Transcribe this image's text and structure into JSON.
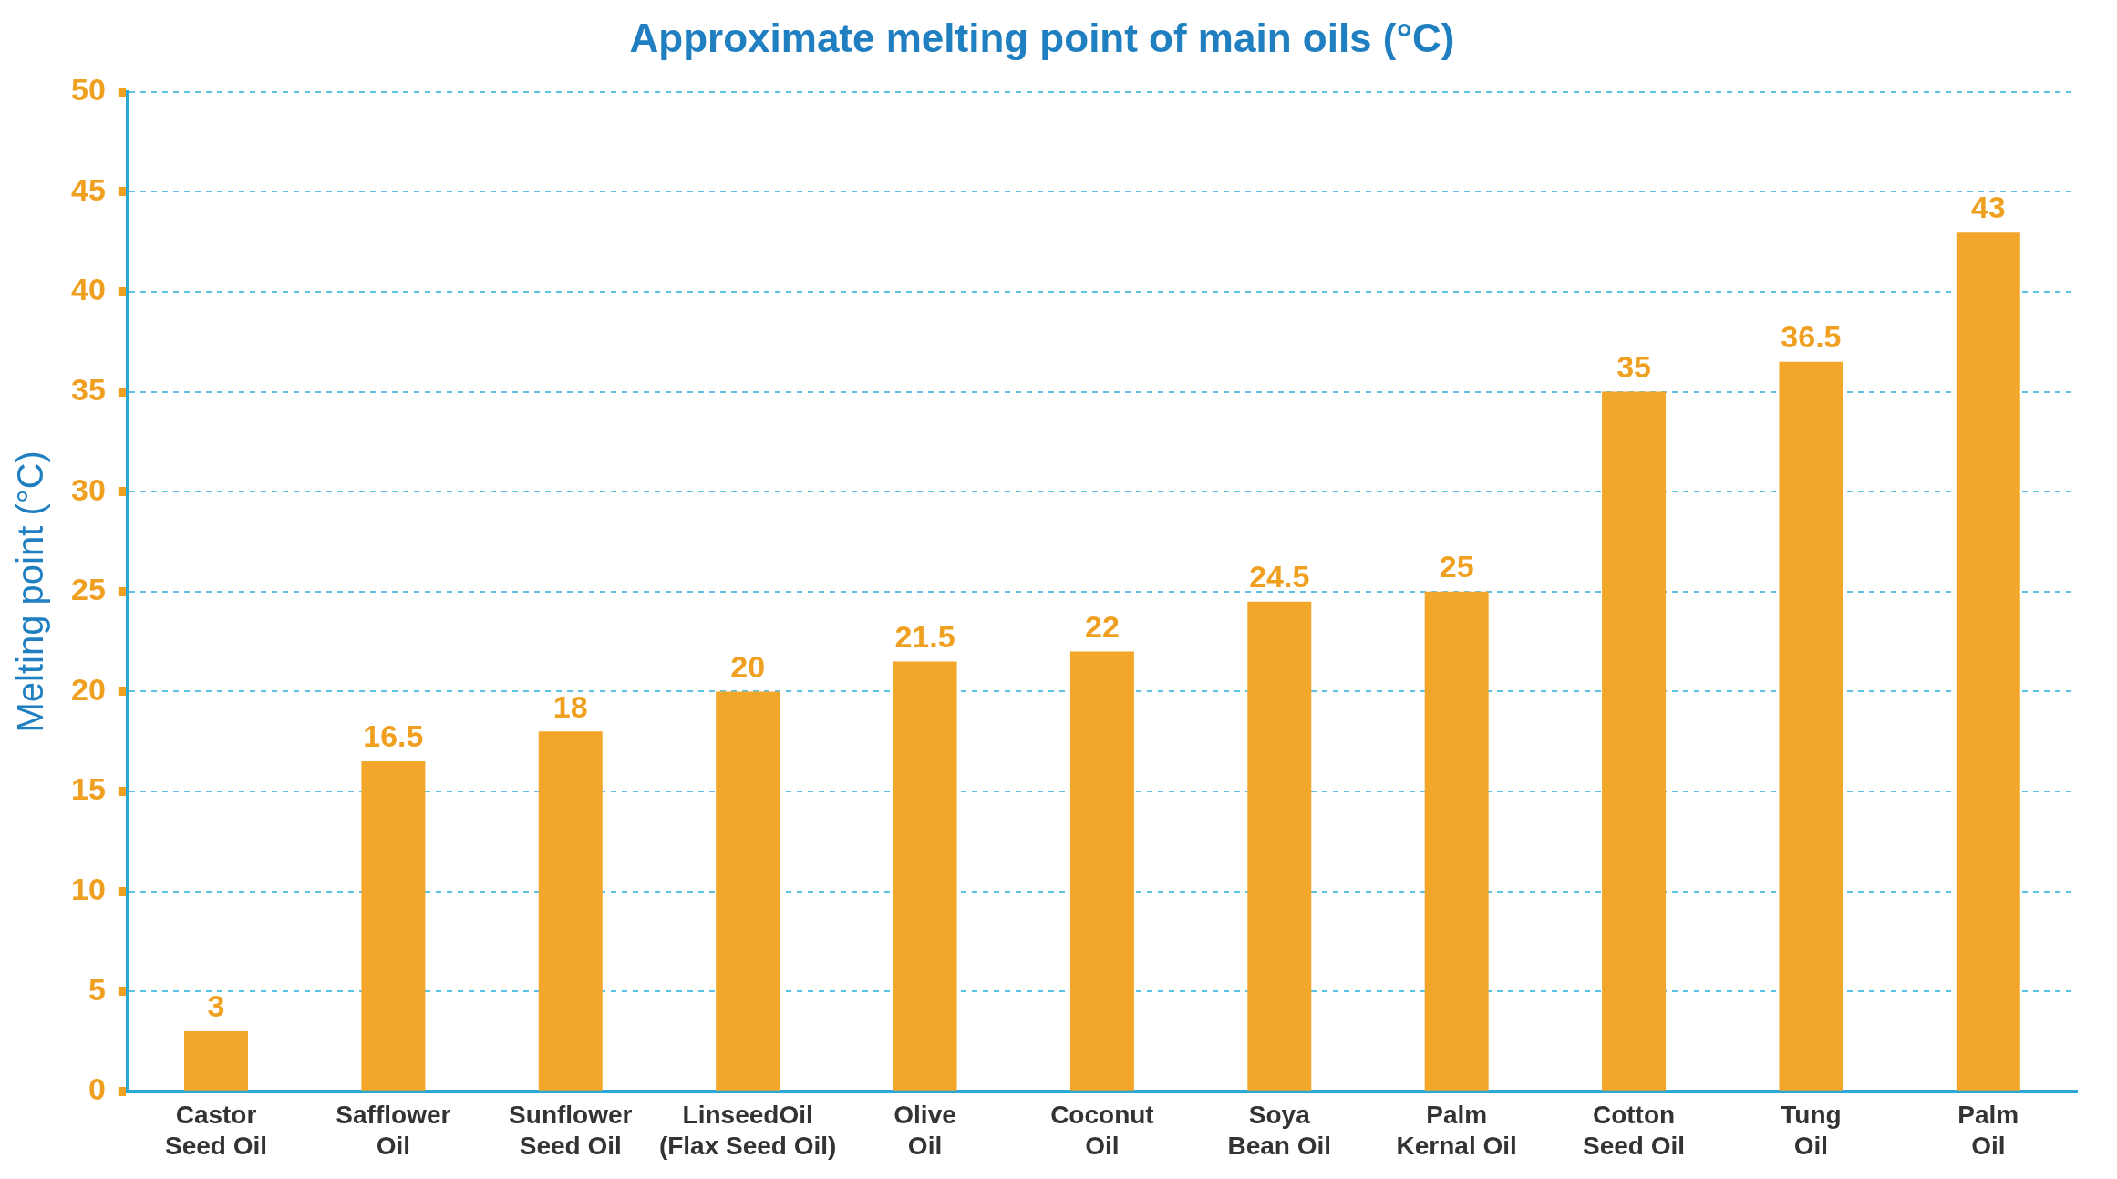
{
  "chart_data": {
    "type": "bar",
    "title": "Approximate melting point of main oils (°C)",
    "ylabel": "Melting point (°C)",
    "categories": [
      "Castor\nSeed Oil",
      "Safflower\nOil",
      "Sunflower\nSeed Oil",
      "LinseedOil\n(Flax Seed Oil)",
      "Olive\nOil",
      "Coconut\nOil",
      "Soya\nBean Oil",
      "Palm\nKernal Oil",
      "Cotton\nSeed Oil",
      "Tung\nOil",
      "Palm\nOil"
    ],
    "values": [
      3,
      16.5,
      18,
      20,
      21.5,
      22,
      24.5,
      25,
      35,
      36.5,
      43
    ],
    "color": "#f2a62a",
    "ylim": [
      0,
      50
    ],
    "yticks": [
      0,
      5,
      10,
      15,
      20,
      25,
      30,
      35,
      40,
      45,
      50
    ],
    "grid": "y",
    "legend": false,
    "data_labels": true
  }
}
